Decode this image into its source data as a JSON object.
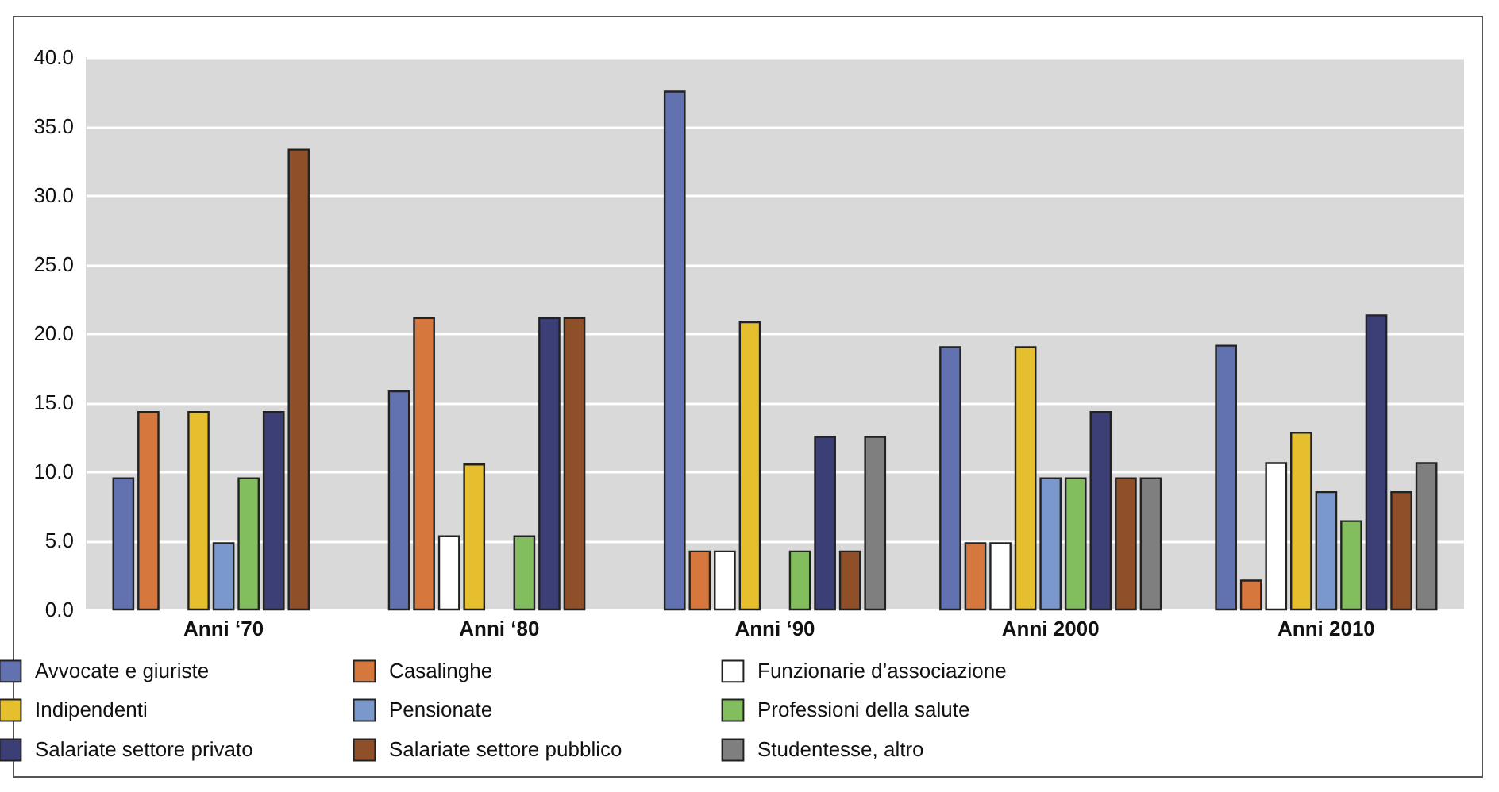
{
  "chart_data": {
    "type": "bar",
    "categories": [
      "Anni ‘70",
      "Anni ‘80",
      "Anni ‘90",
      "Anni 2000",
      "Anni 2010"
    ],
    "series": [
      {
        "name": "Avvocate e giuriste",
        "color": "#6272b0",
        "values": [
          9.5,
          15.8,
          37.5,
          19.0,
          19.1
        ]
      },
      {
        "name": "Casalinghe",
        "color": "#d6783d",
        "values": [
          14.3,
          21.1,
          4.2,
          4.8,
          2.1
        ]
      },
      {
        "name": "Funzionarie d’associazione",
        "color": "#ffffff",
        "values": [
          null,
          5.3,
          4.2,
          4.8,
          10.6
        ]
      },
      {
        "name": "Indipendenti",
        "color": "#e6bf2e",
        "values": [
          14.3,
          10.5,
          20.8,
          19.0,
          12.8
        ]
      },
      {
        "name": "Pensionate",
        "color": "#7a98cc",
        "values": [
          4.8,
          null,
          null,
          9.5,
          8.5
        ]
      },
      {
        "name": "Professioni della salute",
        "color": "#82bd5e",
        "values": [
          9.5,
          5.3,
          4.2,
          9.5,
          6.4
        ]
      },
      {
        "name": "Salariate settore privato",
        "color": "#3c3f75",
        "values": [
          14.3,
          21.1,
          12.5,
          14.3,
          21.3
        ]
      },
      {
        "name": "Salariate settore pubblico",
        "color": "#8f4f28",
        "values": [
          33.3,
          21.1,
          4.2,
          9.5,
          8.5
        ]
      },
      {
        "name": "Studentesse, altro",
        "color": "#7f7f7f",
        "values": [
          null,
          null,
          12.5,
          9.5,
          10.6
        ]
      }
    ],
    "ylim": [
      0,
      40
    ],
    "yticks": [
      {
        "value": 0,
        "label": "0.0"
      },
      {
        "value": 5,
        "label": "5.0"
      },
      {
        "value": 10,
        "label": "10.0"
      },
      {
        "value": 15,
        "label": "15.0"
      },
      {
        "value": 20,
        "label": "20.0"
      },
      {
        "value": 25,
        "label": "25.0"
      },
      {
        "value": 30,
        "label": "30.0"
      },
      {
        "value": 35,
        "label": "35.0"
      },
      {
        "value": 40,
        "label": "40.0"
      }
    ],
    "grid": "y",
    "legend": "bottom"
  }
}
